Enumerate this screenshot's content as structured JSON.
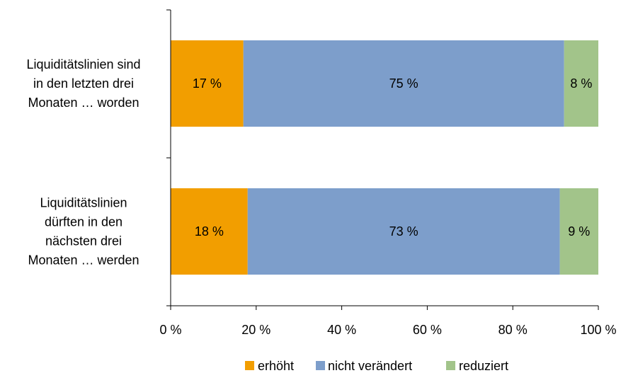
{
  "chart_data": {
    "type": "bar",
    "orientation": "horizontal",
    "stacked": true,
    "title": "",
    "xlabel": "",
    "ylabel": "",
    "categories": [
      "Liquiditätslinien sind in den letzten drei Monaten … worden",
      "Liquiditätslinien dürften in den nächsten drei Monaten … werden"
    ],
    "category_lines": [
      [
        "Liquiditätslinien sind",
        "in den letzten drei",
        "Monaten … worden"
      ],
      [
        "Liquiditätslinien",
        "dürften in den",
        "nächsten drei",
        "Monaten … werden"
      ]
    ],
    "series": [
      {
        "name": "erhöht",
        "values": [
          17,
          18
        ],
        "labels": [
          "17 %",
          "18 %"
        ],
        "color": "#F29E00"
      },
      {
        "name": "nicht verändert",
        "values": [
          75,
          73
        ],
        "labels": [
          "75 %",
          "73 %"
        ],
        "color": "#7D9ECB"
      },
      {
        "name": "reduziert",
        "values": [
          8,
          9
        ],
        "labels": [
          "8 %",
          "9 %"
        ],
        "color": "#A2C48A"
      }
    ],
    "xlim": [
      0,
      100
    ],
    "xticks": [
      0,
      20,
      40,
      60,
      80,
      100
    ],
    "xtick_labels": [
      "0 %",
      "20 %",
      "40 %",
      "60 %",
      "80 %",
      "100 %"
    ],
    "grid": false,
    "legend_position": "bottom"
  }
}
